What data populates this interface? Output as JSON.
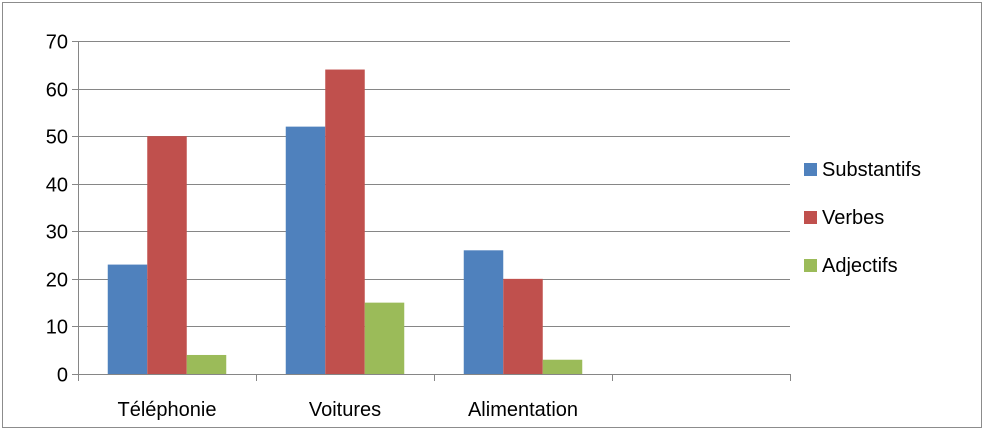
{
  "chart_data": {
    "type": "bar",
    "title": "",
    "xlabel": "",
    "ylabel": "",
    "categories": [
      "Téléphonie",
      "Voitures",
      "Alimentation",
      ""
    ],
    "ylim": [
      0,
      70
    ],
    "yticks": [
      0,
      10,
      20,
      30,
      40,
      50,
      60,
      70
    ],
    "grid": "horizontal",
    "legend_position": "right",
    "series": [
      {
        "name": "Substantifs",
        "color": "#4f81bd",
        "values": [
          23,
          52,
          26,
          null
        ]
      },
      {
        "name": "Verbes",
        "color": "#c0504d",
        "values": [
          50,
          64,
          20,
          null
        ]
      },
      {
        "name": "Adjectifs",
        "color": "#9bbb59",
        "values": [
          4,
          15,
          3,
          null
        ]
      }
    ]
  }
}
